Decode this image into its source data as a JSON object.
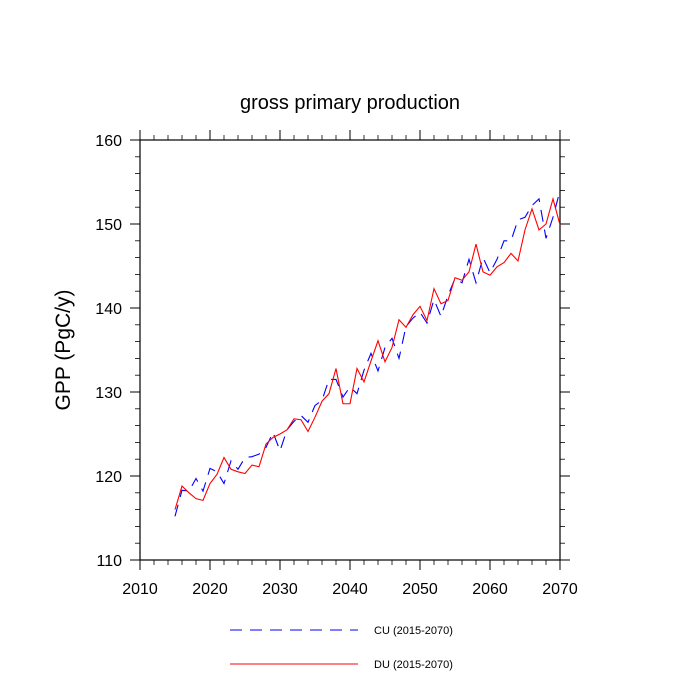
{
  "chart_data": {
    "type": "line",
    "title": "gross primary production",
    "xlabel": "",
    "ylabel": "GPP  (PgC/y)",
    "xlim": [
      2010,
      2070
    ],
    "ylim": [
      110,
      160
    ],
    "xticks": [
      2010,
      2020,
      2030,
      2040,
      2050,
      2060,
      2070
    ],
    "yticks": [
      110,
      120,
      130,
      140,
      150,
      160
    ],
    "x_minor_step": 2,
    "y_minor_step": 2,
    "grid": false,
    "legend_position": "bottom",
    "series": [
      {
        "name": "CU (2015-2070)",
        "color": "#0000ff",
        "dash": "dashed",
        "x": [
          2015,
          2016,
          2017,
          2018,
          2019,
          2020,
          2021,
          2022,
          2023,
          2024,
          2025,
          2026,
          2027,
          2028,
          2029,
          2030,
          2031,
          2032,
          2033,
          2034,
          2035,
          2036,
          2037,
          2038,
          2039,
          2040,
          2041,
          2042,
          2043,
          2044,
          2045,
          2046,
          2047,
          2048,
          2049,
          2050,
          2051,
          2052,
          2053,
          2054,
          2055,
          2056,
          2057,
          2058,
          2059,
          2060,
          2061,
          2062,
          2063,
          2064,
          2065,
          2066,
          2067,
          2068,
          2069,
          2070
        ],
        "values": [
          115.2,
          118.3,
          118.2,
          119.7,
          118.2,
          120.9,
          120.5,
          119.1,
          121.8,
          120.8,
          122.2,
          122.3,
          122.6,
          123.4,
          125.2,
          123.0,
          125.5,
          126.5,
          127.2,
          126.4,
          128.4,
          129.0,
          131.5,
          131.5,
          129.4,
          130.6,
          129.8,
          132.6,
          134.6,
          132.5,
          135.3,
          136.4,
          134.0,
          137.8,
          138.8,
          139.5,
          138.2,
          141.0,
          139.0,
          141.5,
          143.5,
          143.0,
          145.8,
          143.0,
          146.0,
          144.2,
          145.8,
          148.0,
          148.0,
          150.5,
          150.8,
          152.2,
          153.0,
          148.3,
          150.8,
          154.0
        ]
      },
      {
        "name": "DU (2015-2070)",
        "color": "#ff0000",
        "dash": "solid",
        "x": [
          2015,
          2016,
          2017,
          2018,
          2019,
          2020,
          2021,
          2022,
          2023,
          2024,
          2025,
          2026,
          2027,
          2028,
          2029,
          2030,
          2031,
          2032,
          2033,
          2034,
          2035,
          2036,
          2037,
          2038,
          2039,
          2040,
          2041,
          2042,
          2043,
          2044,
          2045,
          2046,
          2047,
          2048,
          2049,
          2050,
          2051,
          2052,
          2053,
          2054,
          2055,
          2056,
          2057,
          2058,
          2059,
          2060,
          2061,
          2062,
          2063,
          2064,
          2065,
          2066,
          2067,
          2068,
          2069,
          2070
        ],
        "values": [
          116.0,
          118.8,
          118.0,
          117.3,
          117.1,
          119.1,
          120.2,
          122.2,
          120.8,
          120.5,
          120.3,
          121.3,
          121.1,
          123.8,
          124.6,
          125.0,
          125.5,
          126.8,
          126.7,
          125.3,
          127.0,
          128.9,
          129.8,
          132.8,
          128.6,
          128.6,
          132.8,
          131.2,
          133.7,
          136.1,
          133.6,
          135.3,
          138.6,
          137.7,
          139.2,
          140.2,
          138.5,
          142.3,
          140.5,
          140.9,
          143.6,
          143.3,
          144.3,
          147.6,
          144.3,
          143.9,
          144.9,
          145.4,
          146.5,
          145.6,
          149.3,
          151.8,
          149.3,
          150.0,
          153.0,
          149.9
        ]
      }
    ]
  }
}
